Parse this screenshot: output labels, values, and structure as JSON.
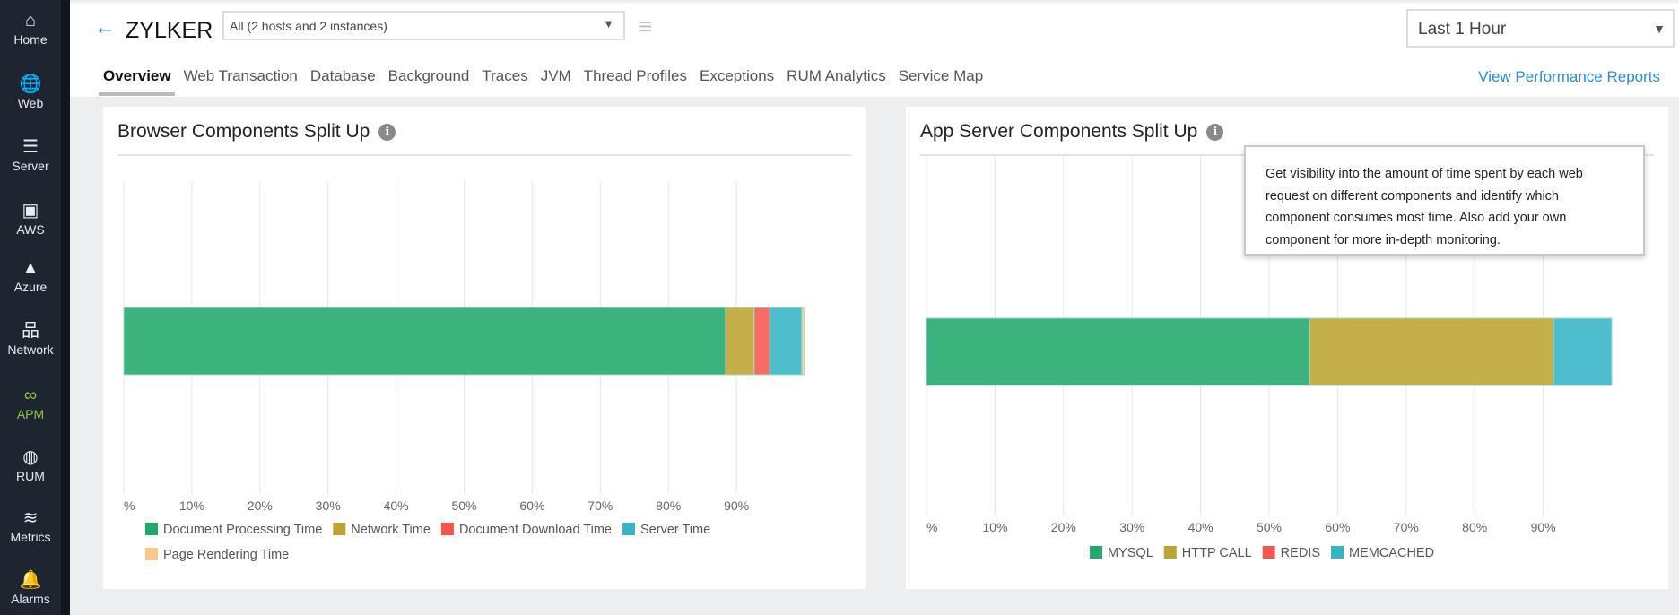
{
  "sidebar": {
    "items": [
      {
        "label": "Home",
        "icon": "home-icon",
        "glyph": "⌂"
      },
      {
        "label": "Web",
        "icon": "globe-icon",
        "glyph": "🌐"
      },
      {
        "label": "Server",
        "icon": "server-icon",
        "glyph": "☰"
      },
      {
        "label": "AWS",
        "icon": "aws-cubes-icon",
        "glyph": "▣"
      },
      {
        "label": "Azure",
        "icon": "azure-icon",
        "glyph": "▲"
      },
      {
        "label": "Network",
        "icon": "network-icon",
        "glyph": "品"
      },
      {
        "label": "APM",
        "icon": "binoculars-icon",
        "glyph": "∞",
        "active": true
      },
      {
        "label": "RUM",
        "icon": "rum-globe-icon",
        "glyph": "◍"
      },
      {
        "label": "Metrics",
        "icon": "layers-icon",
        "glyph": "≋"
      },
      {
        "label": "Alarms",
        "icon": "bell-icon",
        "glyph": "🔔"
      }
    ]
  },
  "header": {
    "title": "ZYLKER",
    "host_select": "All (2 hosts and 2 instances)",
    "time_select": "Last 1 Hour",
    "reports_link": "View Performance Reports",
    "tabs": [
      "Overview",
      "Web Transaction",
      "Database",
      "Background",
      "Traces",
      "JVM",
      "Thread Profiles",
      "Exceptions",
      "RUM Analytics",
      "Service Map"
    ],
    "active_tab": "Overview"
  },
  "tooltip": "Get visibility into the amount of time spent by each web request on different components and identify which component consumes most time. Also add your own component for more in-depth monitoring.",
  "chart_data": [
    {
      "type": "bar",
      "orientation": "horizontal",
      "stacked": true,
      "title": "Browser Components Split Up",
      "xlim": [
        0,
        100
      ],
      "grid": true,
      "legend": "bottom",
      "x_ticks": [
        "%",
        "10%",
        "20%",
        "30%",
        "40%",
        "50%",
        "60%",
        "70%",
        "80%",
        "90%"
      ],
      "series": [
        {
          "name": "Document Processing Time",
          "values": [
            88.4
          ],
          "color": "#21a86b"
        },
        {
          "name": "Network Time",
          "values": [
            4.2
          ],
          "color": "#bca432"
        },
        {
          "name": "Document Download Time",
          "values": [
            2.3
          ],
          "color": "#f5564e"
        },
        {
          "name": "Server Time",
          "values": [
            4.7
          ],
          "color": "#36b5c7"
        },
        {
          "name": "Page Rendering Time",
          "values": [
            0.4
          ],
          "color": "#f8c98a"
        }
      ]
    },
    {
      "type": "bar",
      "orientation": "horizontal",
      "stacked": true,
      "title": "App Server Components Split Up",
      "xlim": [
        0,
        100
      ],
      "grid": true,
      "legend": "bottom",
      "x_ticks": [
        "%",
        "10%",
        "20%",
        "30%",
        "40%",
        "50%",
        "60%",
        "70%",
        "80%",
        "90%"
      ],
      "series": [
        {
          "name": "MYSQL",
          "values": [
            55.9
          ],
          "color": "#21a86b"
        },
        {
          "name": "HTTP CALL",
          "values": [
            35.6
          ],
          "color": "#bca432"
        },
        {
          "name": "REDIS",
          "values": [
            0
          ],
          "color": "#f5564e"
        },
        {
          "name": "MEMCACHED",
          "values": [
            8.5
          ],
          "color": "#36b5c7"
        }
      ]
    }
  ]
}
